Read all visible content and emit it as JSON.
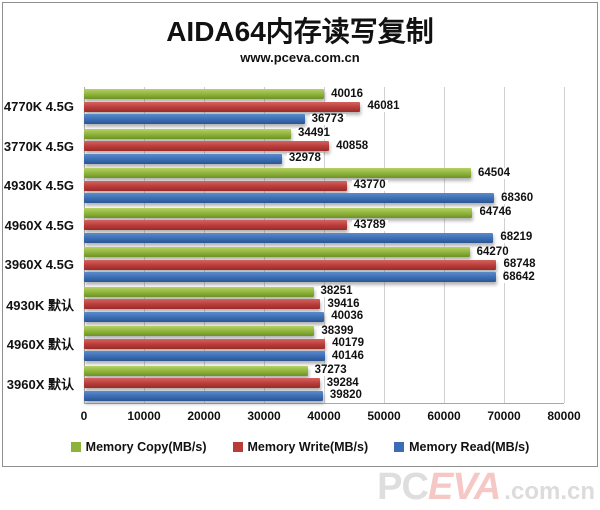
{
  "title": "AIDA64内存读写复制",
  "subtitle": "www.pceva.com.cn",
  "watermark": {
    "part1": "PC",
    "part2": "EVA",
    "part3": ".com.cn",
    "part1_color": "#dedede",
    "part2_color": "#f5c8c6",
    "part3_color": "#dcdcdc"
  },
  "chart_data": {
    "type": "bar",
    "orientation": "horizontal",
    "title": "AIDA64内存读写复制",
    "subtitle": "www.pceva.com.cn",
    "categories": [
      "4770K 4.5G",
      "3770K 4.5G",
      "4930K 4.5G",
      "4960X 4.5G",
      "3960X 4.5G",
      "4930K 默认",
      "4960X 默认",
      "3960X 默认"
    ],
    "series": [
      {
        "name": "Memory Copy(MB/s)",
        "key": "memory-copy",
        "color": "#8cb23a",
        "color_light": "#b6d164",
        "color_dark": "#6e9126",
        "values": [
          40016,
          34491,
          64504,
          64746,
          64270,
          38251,
          38399,
          37273
        ]
      },
      {
        "name": "Memory Write(MB/s)",
        "key": "memory-write",
        "color": "#ba3c39",
        "color_light": "#d36360",
        "color_dark": "#962c2a",
        "values": [
          46081,
          40858,
          43770,
          43789,
          68748,
          39416,
          40179,
          39284
        ]
      },
      {
        "name": "Memory Read(MB/s)",
        "key": "memory-read",
        "color": "#3a6db4",
        "color_light": "#5c8bca",
        "color_dark": "#2b5590",
        "values": [
          36773,
          32978,
          68360,
          68219,
          68642,
          40036,
          40146,
          39820
        ]
      }
    ],
    "xlim": [
      0,
      80000
    ],
    "xticks": [
      0,
      10000,
      20000,
      30000,
      40000,
      50000,
      60000,
      70000,
      80000
    ],
    "grid": true,
    "grid_color": "#d2d2d2",
    "axis_color": "#a8a8a8",
    "legend_position": "bottom",
    "data_labels": true
  }
}
